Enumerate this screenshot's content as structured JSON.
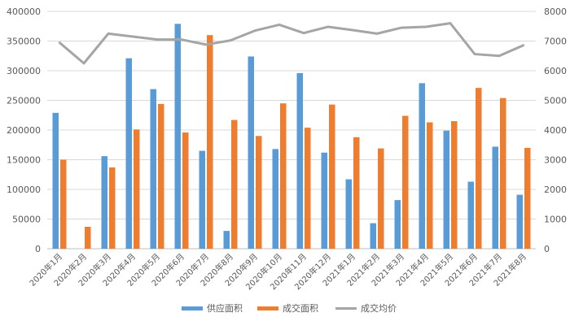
{
  "chart_data": {
    "type": "bar",
    "categories": [
      "2020年1月",
      "2020年2月",
      "2020年3月",
      "2020年4月",
      "2020年5月",
      "2020年6月",
      "2020年7月",
      "2020年8月",
      "2020年9月",
      "2020年10月",
      "2020年11月",
      "2020年12月",
      "2021年1月",
      "2021年2月",
      "2021年3月",
      "2021年4月",
      "2021年5月",
      "2021年6月",
      "2021年7月",
      "2021年8月"
    ],
    "series": [
      {
        "name": "供应面积",
        "type": "bar",
        "axis": "left",
        "color": "#5b9bd5",
        "values": [
          229000,
          0,
          156000,
          321000,
          269000,
          379000,
          165000,
          30000,
          324000,
          168000,
          296000,
          162000,
          117000,
          43000,
          82000,
          279000,
          199000,
          113000,
          172000,
          91000
        ]
      },
      {
        "name": "成交面积",
        "type": "bar",
        "axis": "left",
        "color": "#ed7d31",
        "values": [
          150000,
          37000,
          137000,
          201000,
          244000,
          196000,
          360000,
          217000,
          190000,
          245000,
          204000,
          243000,
          188000,
          169000,
          224000,
          213000,
          215000,
          271000,
          254000,
          170000
        ]
      },
      {
        "name": "成交均价",
        "type": "line",
        "axis": "right",
        "color": "#a5a5a5",
        "values": [
          6950,
          6250,
          7250,
          7150,
          7050,
          7050,
          6880,
          7020,
          7350,
          7550,
          7270,
          7480,
          7370,
          7250,
          7450,
          7480,
          7600,
          6560,
          6500,
          6860
        ]
      }
    ],
    "ylim": [
      0,
      400000
    ],
    "yticks": [
      "0",
      "50000",
      "100000",
      "150000",
      "200000",
      "250000",
      "300000",
      "350000",
      "400000"
    ],
    "ylim_right": [
      0,
      8000
    ],
    "yticks_right": [
      "0",
      "1000",
      "2000",
      "3000",
      "4000",
      "5000",
      "6000",
      "7000",
      "8000"
    ],
    "grid": true,
    "legend": "bottom"
  }
}
